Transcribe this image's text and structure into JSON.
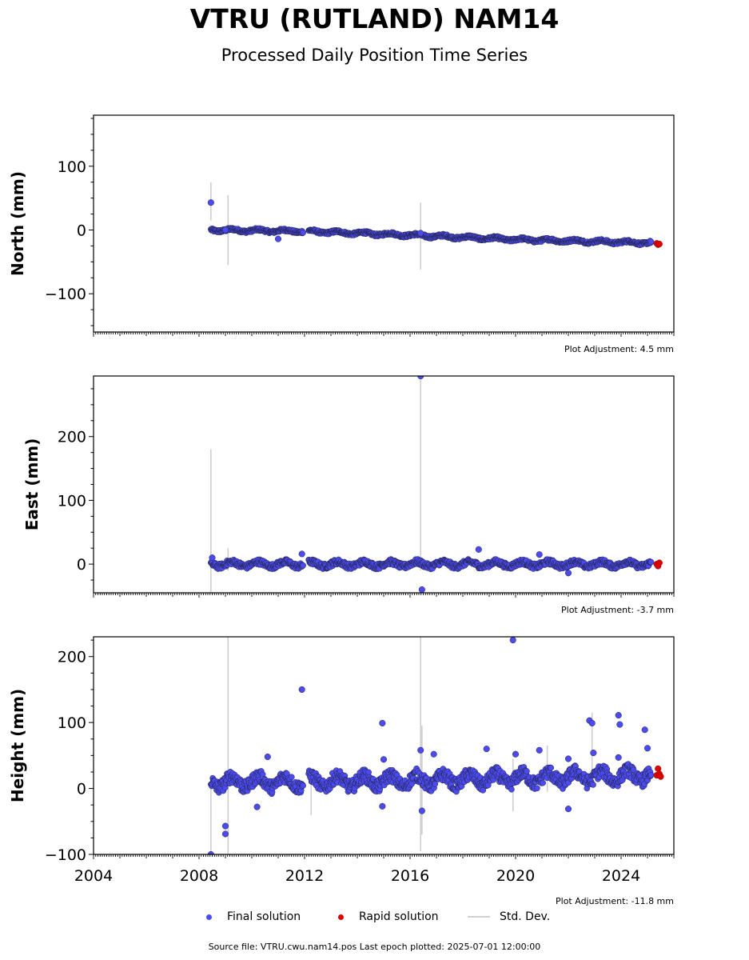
{
  "title": "VTRU (RUTLAND) NAM14",
  "subtitle": "Processed Daily Position Time Series",
  "legend": {
    "final": "Final solution",
    "rapid": "Rapid solution",
    "std": "Std. Dev."
  },
  "footer": "Source file: VTRU.cwu.nam14.pos  Last epoch plotted: 2025-07-01 12:00:00",
  "colors": {
    "final": "#4b4bf0",
    "rapid": "#e00000",
    "std": "#cccccc",
    "edge": "#222244"
  },
  "chart_data": [
    {
      "type": "scatter",
      "ylabel": "North (mm)",
      "xlim": [
        2004,
        2026
      ],
      "ylim": [
        -160,
        180
      ],
      "yticks": [
        -100,
        0,
        100
      ],
      "adjustment": "Plot Adjustment: 4.5 mm",
      "trend": [
        [
          2008.5,
          0
        ],
        [
          2012,
          -2
        ],
        [
          2016,
          -8
        ],
        [
          2020,
          -15
        ],
        [
          2025,
          -20
        ]
      ],
      "scatter_amplitude": 3,
      "outliers": [
        [
          2008.45,
          43
        ],
        [
          2009.0,
          0
        ],
        [
          2011.0,
          -14
        ],
        [
          2016.4,
          -5
        ]
      ],
      "std_bars": [
        [
          2008.45,
          15,
          75
        ],
        [
          2009.1,
          -55,
          55
        ],
        [
          2016.4,
          -62,
          43
        ]
      ],
      "rapid": [
        [
          2025.35,
          -21
        ],
        [
          2025.4,
          -23
        ],
        [
          2025.45,
          -22
        ]
      ]
    },
    {
      "type": "scatter",
      "ylabel": "East (mm)",
      "xlim": [
        2004,
        2026
      ],
      "ylim": [
        -45,
        295
      ],
      "yticks": [
        0,
        100,
        200
      ],
      "adjustment": "Plot Adjustment: -3.7 mm",
      "trend": [
        [
          2008.5,
          0
        ],
        [
          2012,
          0
        ],
        [
          2016,
          0
        ],
        [
          2020,
          0
        ],
        [
          2025,
          0
        ]
      ],
      "scatter_amplitude": 6,
      "outliers": [
        [
          2008.5,
          10
        ],
        [
          2011.9,
          16
        ],
        [
          2016.4,
          295
        ],
        [
          2016.45,
          -40
        ],
        [
          2018.6,
          23
        ],
        [
          2022.0,
          -14
        ],
        [
          2020.9,
          15
        ]
      ],
      "std_bars": [
        [
          2008.45,
          -45,
          180
        ],
        [
          2009.1,
          -10,
          25
        ],
        [
          2016.4,
          -10,
          295
        ]
      ],
      "rapid": [
        [
          2025.35,
          0
        ],
        [
          2025.4,
          -3
        ],
        [
          2025.45,
          2
        ]
      ]
    },
    {
      "type": "scatter",
      "ylabel": "Height (mm)",
      "xlim": [
        2004,
        2026
      ],
      "ylim": [
        -100,
        230
      ],
      "yticks": [
        -100,
        0,
        100,
        200
      ],
      "xticks": [
        2004,
        2008,
        2012,
        2016,
        2020,
        2024
      ],
      "adjustment": "Plot Adjustment: -11.8 mm",
      "trend": [
        [
          2008.5,
          10
        ],
        [
          2012,
          10
        ],
        [
          2016,
          12
        ],
        [
          2020,
          15
        ],
        [
          2025,
          20
        ]
      ],
      "scatter_amplitude": 14,
      "outliers": [
        [
          2008.45,
          -100
        ],
        [
          2009.0,
          -57
        ],
        [
          2009.0,
          -69
        ],
        [
          2010.2,
          -28
        ],
        [
          2010.6,
          48
        ],
        [
          2011.9,
          150
        ],
        [
          2014.95,
          99
        ],
        [
          2015.0,
          44
        ],
        [
          2014.95,
          -27
        ],
        [
          2016.4,
          58
        ],
        [
          2016.45,
          -34
        ],
        [
          2016.9,
          52
        ],
        [
          2018.9,
          60
        ],
        [
          2019.9,
          225
        ],
        [
          2020.0,
          52
        ],
        [
          2020.9,
          58
        ],
        [
          2022.0,
          45
        ],
        [
          2022.0,
          -31
        ],
        [
          2022.8,
          103
        ],
        [
          2022.9,
          99
        ],
        [
          2022.95,
          54
        ],
        [
          2023.9,
          111
        ],
        [
          2023.95,
          97
        ],
        [
          2023.9,
          47
        ],
        [
          2024.9,
          89
        ],
        [
          2025.0,
          61
        ]
      ],
      "std_bars": [
        [
          2008.45,
          -100,
          20
        ],
        [
          2009.1,
          -100,
          230
        ],
        [
          2012.25,
          -40,
          30
        ],
        [
          2016.4,
          -95,
          230
        ],
        [
          2016.45,
          -70,
          95
        ],
        [
          2019.9,
          -35,
          45
        ],
        [
          2021.2,
          -5,
          65
        ],
        [
          2022.9,
          10,
          115
        ]
      ],
      "rapid": [
        [
          2025.35,
          20
        ],
        [
          2025.4,
          30
        ],
        [
          2025.45,
          22
        ],
        [
          2025.5,
          18
        ]
      ]
    }
  ]
}
